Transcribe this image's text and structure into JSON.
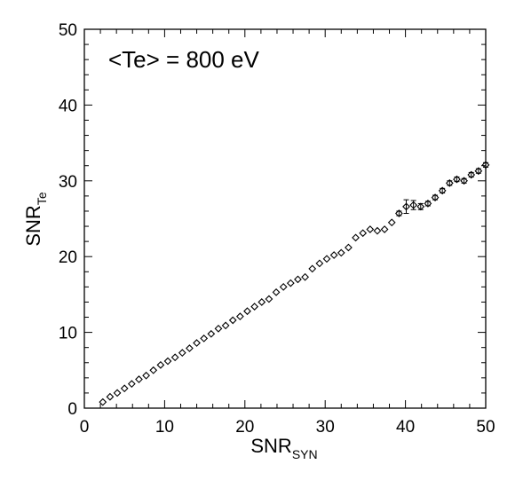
{
  "chart_data": {
    "type": "scatter",
    "title": "",
    "annotation": "<Te> = 800 eV",
    "xlabel": {
      "main": "SNR",
      "sub": "SYN"
    },
    "ylabel": {
      "main": "SNR",
      "sub": "Te"
    },
    "xlim": [
      0,
      50
    ],
    "ylim": [
      0,
      50
    ],
    "xticks": [
      0,
      10,
      20,
      30,
      40,
      50
    ],
    "yticks": [
      0,
      10,
      20,
      30,
      40,
      50
    ],
    "grid": false,
    "marker": "diamond",
    "series": [
      {
        "x": [
          2.3,
          3.2,
          4.1,
          5.0,
          5.9,
          6.8,
          7.7,
          8.6,
          9.5,
          10.4,
          11.3,
          12.2,
          13.1,
          14.0,
          14.9,
          15.8,
          16.7,
          17.6,
          18.5,
          19.4,
          20.3,
          21.2,
          22.1,
          23.0,
          23.9,
          24.8,
          25.7,
          26.6,
          27.5,
          28.4,
          29.3,
          30.2,
          31.1,
          32.0,
          32.9,
          33.8,
          34.7,
          35.6,
          36.5,
          37.4,
          38.3,
          39.2,
          40.1,
          41.0,
          41.9,
          42.8,
          43.7,
          44.6,
          45.5,
          46.4,
          47.3,
          48.2,
          49.1,
          50.0
        ],
        "y": [
          0.8,
          1.5,
          2.0,
          2.6,
          3.2,
          3.8,
          4.3,
          5.0,
          5.7,
          6.2,
          6.7,
          7.3,
          7.9,
          8.6,
          9.2,
          9.8,
          10.5,
          10.9,
          11.6,
          12.1,
          12.8,
          13.4,
          14.0,
          14.4,
          15.3,
          16.0,
          16.5,
          17.0,
          17.3,
          18.4,
          19.1,
          19.7,
          20.2,
          20.5,
          21.2,
          22.5,
          23.1,
          23.6,
          23.4,
          23.6,
          24.5,
          25.7,
          26.6,
          26.8,
          26.6,
          27.0,
          27.8,
          28.7,
          29.7,
          30.2,
          30.0,
          30.8,
          31.3,
          32.1
        ],
        "yerr": [
          0.1,
          0.1,
          0.1,
          0.1,
          0.1,
          0.1,
          0.1,
          0.1,
          0.1,
          0.1,
          0.1,
          0.1,
          0.1,
          0.1,
          0.1,
          0.1,
          0.1,
          0.1,
          0.1,
          0.1,
          0.1,
          0.1,
          0.1,
          0.1,
          0.1,
          0.1,
          0.1,
          0.1,
          0.1,
          0.1,
          0.1,
          0.1,
          0.1,
          0.1,
          0.1,
          0.1,
          0.1,
          0.1,
          0.1,
          0.1,
          0.2,
          0.3,
          0.9,
          0.6,
          0.4,
          0.3,
          0.3,
          0.3,
          0.3,
          0.3,
          0.3,
          0.3,
          0.3,
          0.3
        ]
      }
    ]
  }
}
